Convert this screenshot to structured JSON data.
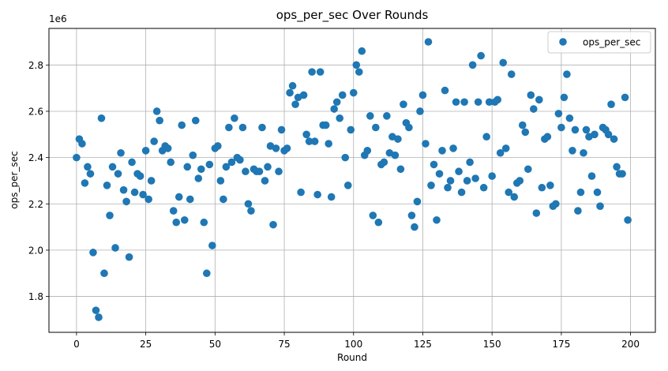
{
  "chart_data": {
    "type": "scatter",
    "title": "ops_per_sec Over Rounds",
    "xlabel": "Round",
    "ylabel": "ops_per_sec",
    "y_offset_label": "1e6",
    "y_multiplier": 1000000,
    "xlim": [
      -9.95,
      208.95
    ],
    "ylim": [
      1.645,
      2.958
    ],
    "x_ticks": [
      0,
      25,
      50,
      75,
      100,
      125,
      150,
      175,
      200
    ],
    "y_ticks": [
      1.8,
      2.0,
      2.2,
      2.4,
      2.6,
      2.8
    ],
    "x_tick_labels": [
      "0",
      "25",
      "50",
      "75",
      "100",
      "125",
      "150",
      "175",
      "200"
    ],
    "y_tick_labels": [
      "1.8",
      "2.0",
      "2.2",
      "2.4",
      "2.6",
      "2.8"
    ],
    "grid": true,
    "legend_position": "top-right",
    "series": [
      {
        "name": "ops_per_sec",
        "color": "#1f77b4",
        "x": [
          0,
          1,
          2,
          3,
          4,
          5,
          6,
          7,
          8,
          9,
          10,
          11,
          12,
          13,
          14,
          15,
          16,
          17,
          18,
          19,
          20,
          21,
          22,
          23,
          24,
          25,
          26,
          27,
          28,
          29,
          30,
          31,
          32,
          33,
          34,
          35,
          36,
          37,
          38,
          39,
          40,
          41,
          42,
          43,
          44,
          45,
          46,
          47,
          48,
          49,
          50,
          51,
          52,
          53,
          54,
          55,
          56,
          57,
          58,
          59,
          60,
          61,
          62,
          63,
          64,
          65,
          66,
          67,
          68,
          69,
          70,
          71,
          72,
          73,
          74,
          75,
          76,
          77,
          78,
          79,
          80,
          81,
          82,
          83,
          84,
          85,
          86,
          87,
          88,
          89,
          90,
          91,
          92,
          93,
          94,
          95,
          96,
          97,
          98,
          99,
          100,
          101,
          102,
          103,
          104,
          105,
          106,
          107,
          108,
          109,
          110,
          111,
          112,
          113,
          114,
          115,
          116,
          117,
          118,
          119,
          120,
          121,
          122,
          123,
          124,
          125,
          126,
          127,
          128,
          129,
          130,
          131,
          132,
          133,
          134,
          135,
          136,
          137,
          138,
          139,
          140,
          141,
          142,
          143,
          144,
          145,
          146,
          147,
          148,
          149,
          150,
          151,
          152,
          153,
          154,
          155,
          156,
          157,
          158,
          159,
          160,
          161,
          162,
          163,
          164,
          165,
          166,
          167,
          168,
          169,
          170,
          171,
          172,
          173,
          174,
          175,
          176,
          177,
          178,
          179,
          180,
          181,
          182,
          183,
          184,
          185,
          186,
          187,
          188,
          189,
          190,
          191,
          192,
          193,
          194,
          195,
          196,
          197,
          198,
          199
        ],
        "y": [
          2.4,
          2.48,
          2.46,
          2.29,
          2.36,
          2.33,
          1.99,
          1.74,
          1.71,
          2.57,
          1.9,
          2.28,
          2.15,
          2.36,
          2.01,
          2.33,
          2.42,
          2.26,
          2.21,
          1.97,
          2.38,
          2.25,
          2.33,
          2.32,
          2.24,
          2.43,
          2.22,
          2.3,
          2.47,
          2.6,
          2.56,
          2.43,
          2.45,
          2.44,
          2.38,
          2.17,
          2.12,
          2.23,
          2.54,
          2.13,
          2.36,
          2.22,
          2.41,
          2.56,
          2.31,
          2.35,
          2.12,
          1.9,
          2.37,
          2.02,
          2.44,
          2.45,
          2.3,
          2.22,
          2.36,
          2.53,
          2.38,
          2.57,
          2.4,
          2.39,
          2.53,
          2.34,
          2.2,
          2.17,
          2.35,
          2.34,
          2.34,
          2.53,
          2.3,
          2.36,
          2.45,
          2.11,
          2.44,
          2.34,
          2.52,
          2.43,
          2.44,
          2.68,
          2.71,
          2.63,
          2.66,
          2.25,
          2.67,
          2.5,
          2.47,
          2.77,
          2.47,
          2.24,
          2.77,
          2.54,
          2.54,
          2.46,
          2.23,
          2.61,
          2.64,
          2.57,
          2.67,
          2.4,
          2.28,
          2.52,
          2.68,
          2.8,
          2.77,
          2.86,
          2.41,
          2.43,
          2.58,
          2.15,
          2.53,
          2.12,
          2.37,
          2.38,
          2.58,
          2.42,
          2.49,
          2.41,
          2.48,
          2.35,
          2.63,
          2.55,
          2.53,
          2.15,
          2.1,
          2.21,
          2.6,
          2.67,
          2.46,
          2.9,
          2.28,
          2.37,
          2.13,
          2.33,
          2.43,
          2.69,
          2.27,
          2.3,
          2.44,
          2.64,
          2.34,
          2.25,
          2.64,
          2.3,
          2.38,
          2.8,
          2.31,
          2.64,
          2.84,
          2.27,
          2.49,
          2.64,
          2.32,
          2.64,
          2.65,
          2.42,
          2.81,
          2.44,
          2.25,
          2.76,
          2.23,
          2.29,
          2.3,
          2.54,
          2.51,
          2.35,
          2.67,
          2.61,
          2.16,
          2.65,
          2.27,
          2.48,
          2.49,
          2.28,
          2.19,
          2.2,
          2.59,
          2.53,
          2.66,
          2.76,
          2.57,
          2.43,
          2.52,
          2.17,
          2.25,
          2.42,
          2.52,
          2.49,
          2.32,
          2.5,
          2.25,
          2.19,
          2.53,
          2.52,
          2.5,
          2.63,
          2.48,
          2.36,
          2.33,
          2.33,
          2.66,
          2.13
        ]
      }
    ]
  }
}
